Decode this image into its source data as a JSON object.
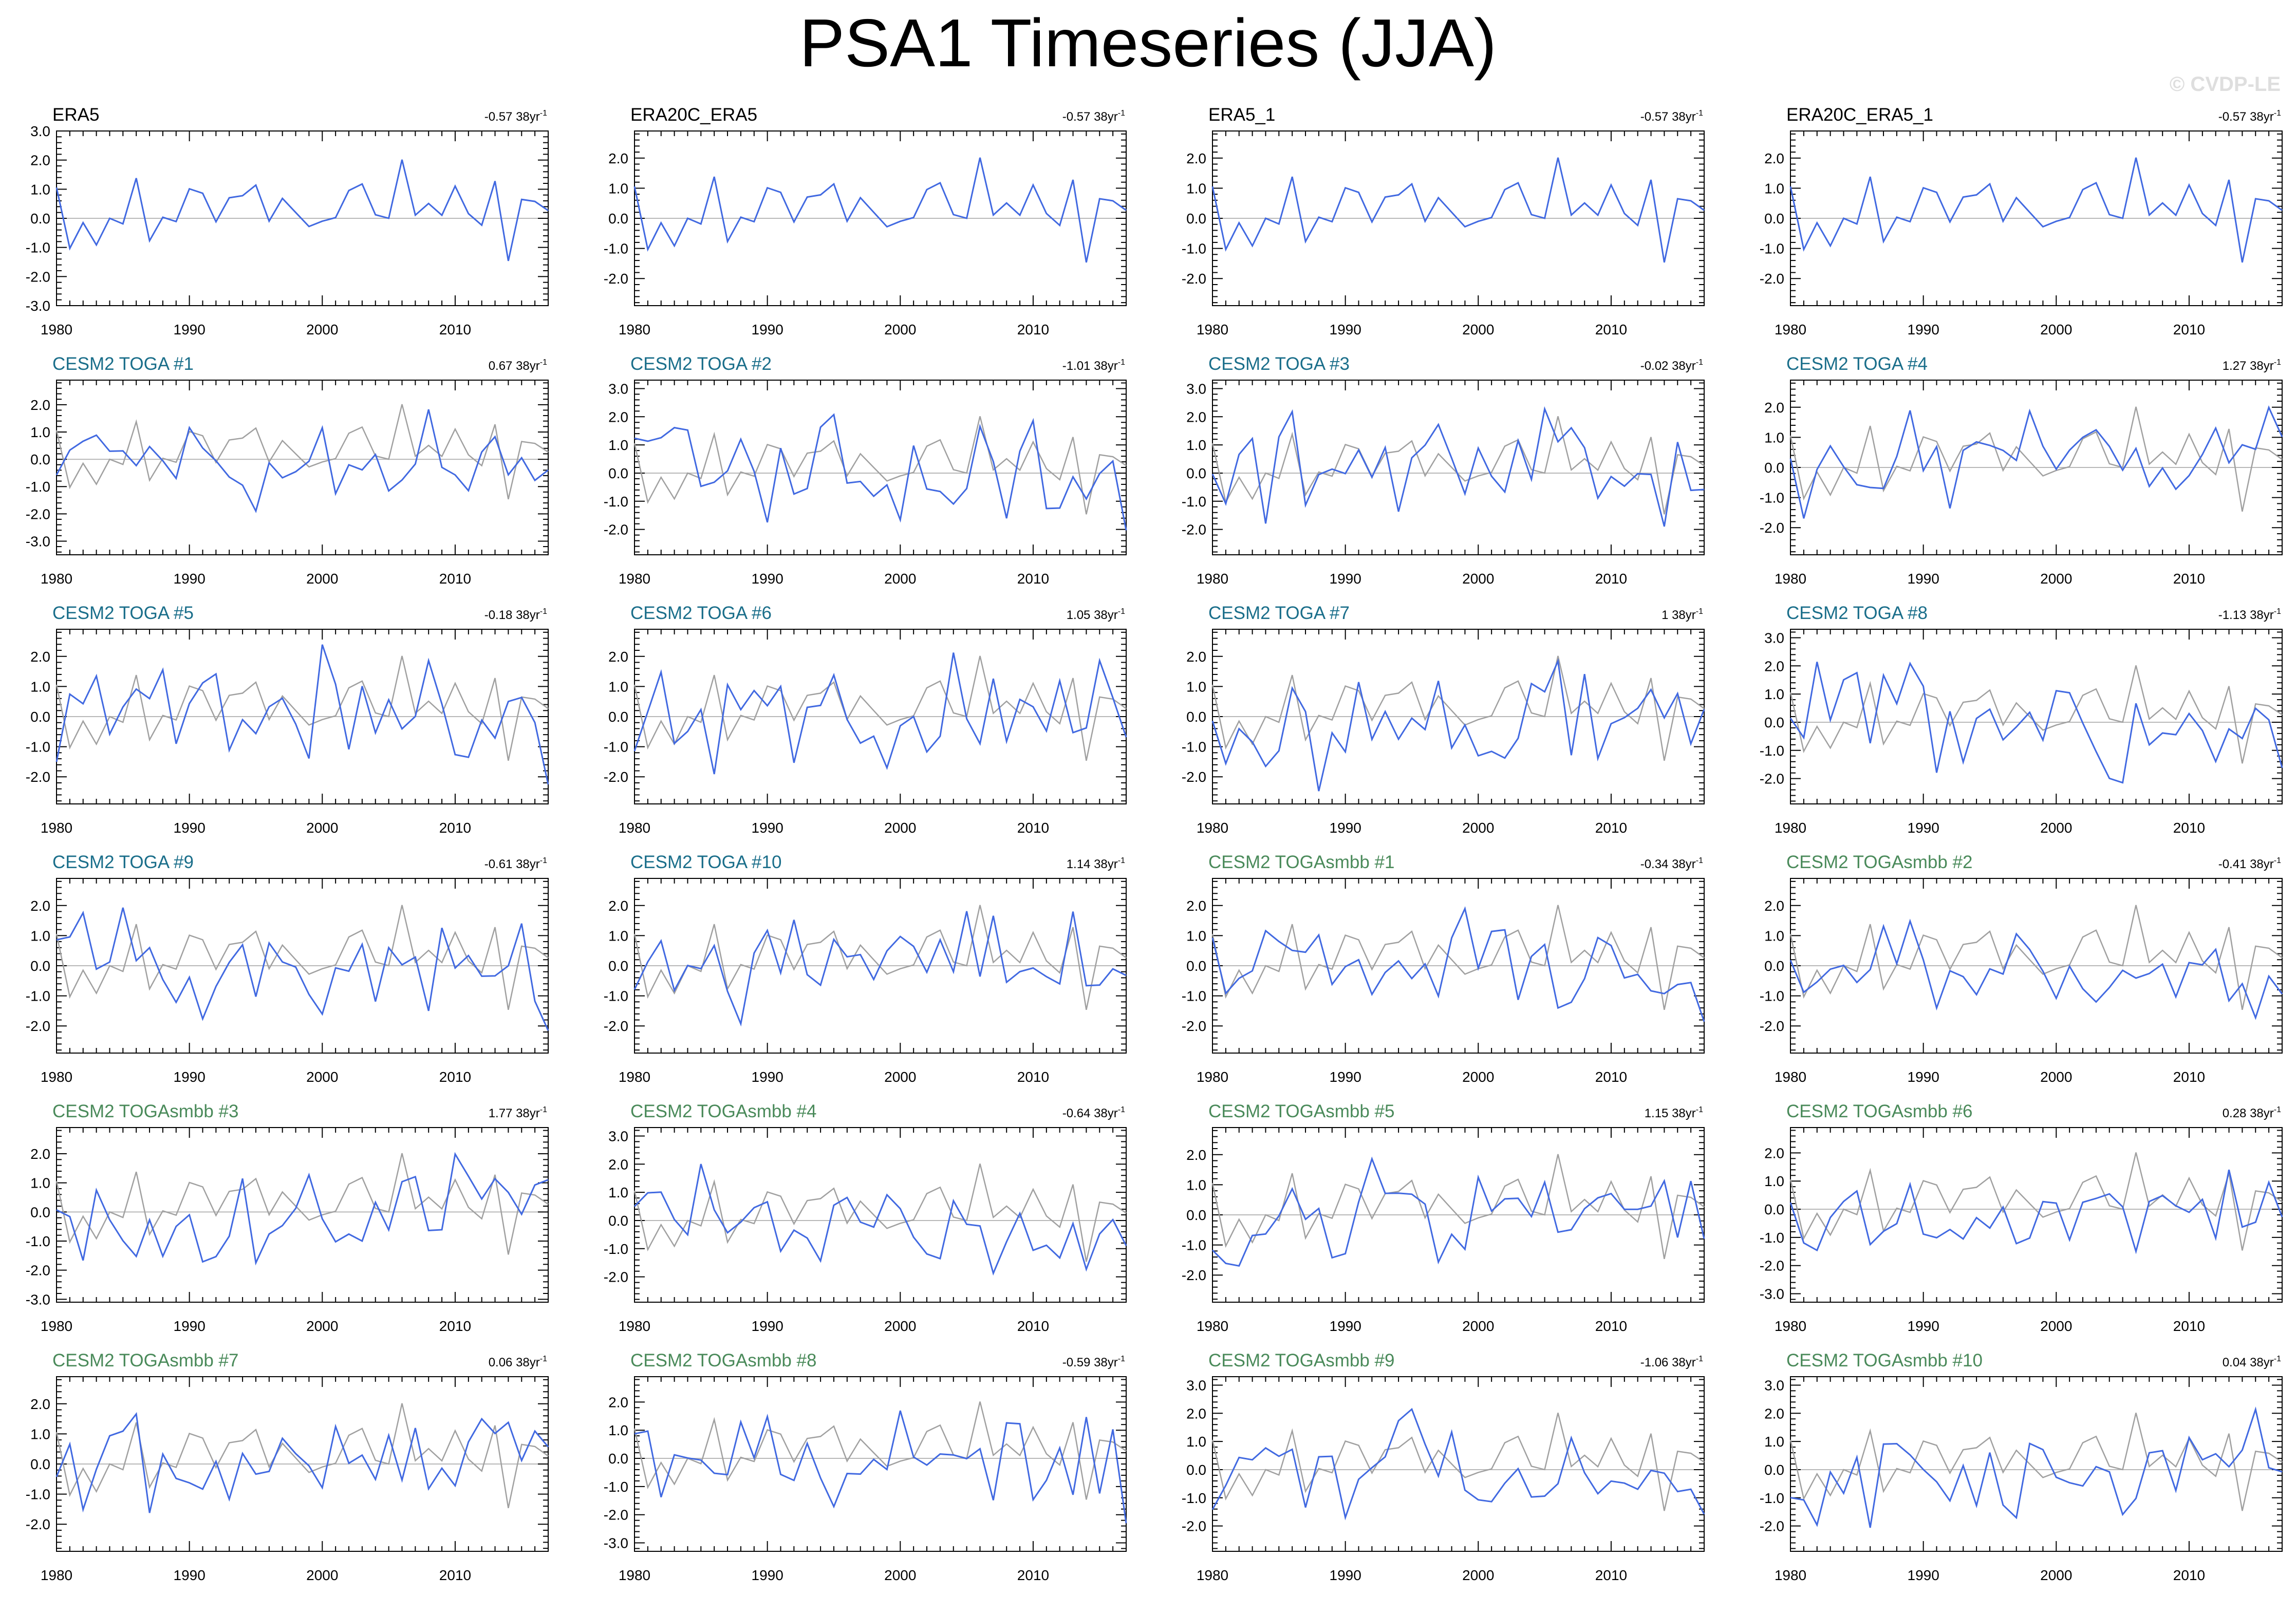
{
  "page_title": "PSA1 Timeseries (JJA)",
  "watermark": "© CVDP-LE",
  "colors": {
    "model": "#4169e1",
    "observed": "#a0a0a0",
    "obs_title": "#000000",
    "toga_title": "#1a6e8a",
    "smbb_title": "#4a8a5a",
    "frame": "#000000",
    "zero_line": "#b8b8b8"
  },
  "chart_data": [
    {
      "type": "line",
      "title": "ERA5",
      "trend_label": "-0.57 38yr",
      "trend_exp": "-1",
      "title_style": "obs",
      "xticks": [
        1980,
        1990,
        2000,
        2010
      ],
      "yticks": [
        -3.0,
        -2.0,
        -1.0,
        0.0,
        1.0,
        2.0,
        3.0
      ],
      "ylim": [
        -3,
        3
      ],
      "xlim": [
        1980,
        2017
      ]
    },
    {
      "type": "line",
      "title": "ERA20C_ERA5",
      "trend_label": "-0.57 38yr",
      "trend_exp": "-1",
      "title_style": "obs",
      "xticks": [
        1980,
        1990,
        2000,
        2010
      ],
      "yticks": [
        -2.0,
        -1.0,
        0.0,
        1.0,
        2.0
      ],
      "ylim": [
        -2.9,
        2.9
      ],
      "xlim": [
        1980,
        2017
      ]
    },
    {
      "type": "line",
      "title": "ERA5_1",
      "trend_label": "-0.57 38yr",
      "trend_exp": "-1",
      "title_style": "obs",
      "xticks": [
        1980,
        1990,
        2000,
        2010
      ],
      "yticks": [
        -2.0,
        -1.0,
        0.0,
        1.0,
        2.0
      ],
      "ylim": [
        -2.9,
        2.9
      ],
      "xlim": [
        1980,
        2017
      ]
    },
    {
      "type": "line",
      "title": "ERA20C_ERA5_1",
      "trend_label": "-0.57 38yr",
      "trend_exp": "-1",
      "title_style": "obs",
      "xticks": [
        1980,
        1990,
        2000,
        2010
      ],
      "yticks": [
        -2.0,
        -1.0,
        0.0,
        1.0,
        2.0
      ],
      "ylim": [
        -2.9,
        2.9
      ],
      "xlim": [
        1980,
        2017
      ]
    },
    {
      "type": "line",
      "title": "CESM2 TOGA #1",
      "trend_label": "0.67 38yr",
      "trend_exp": "-1",
      "title_style": "toga",
      "xticks": [
        1980,
        1990,
        2000,
        2010
      ],
      "yticks": [
        -3.0,
        -2.0,
        -1.0,
        0.0,
        1.0,
        2.0
      ],
      "ylim": [
        -3.5,
        2.9
      ],
      "xlim": [
        1980,
        2017
      ]
    },
    {
      "type": "line",
      "title": "CESM2 TOGA #2",
      "trend_label": "-1.01 38yr",
      "trend_exp": "-1",
      "title_style": "toga",
      "xticks": [
        1980,
        1990,
        2000,
        2010
      ],
      "yticks": [
        -2.0,
        -1.0,
        0.0,
        1.0,
        2.0,
        3.0
      ],
      "ylim": [
        -2.9,
        3.3
      ],
      "xlim": [
        1980,
        2017
      ]
    },
    {
      "type": "line",
      "title": "CESM2 TOGA #3",
      "trend_label": "-0.02 38yr",
      "trend_exp": "-1",
      "title_style": "toga",
      "xticks": [
        1980,
        1990,
        2000,
        2010
      ],
      "yticks": [
        -2.0,
        -1.0,
        0.0,
        1.0,
        2.0,
        3.0
      ],
      "ylim": [
        -2.9,
        3.3
      ],
      "xlim": [
        1980,
        2017
      ]
    },
    {
      "type": "line",
      "title": "CESM2 TOGA #4",
      "trend_label": "1.27 38yr",
      "trend_exp": "-1",
      "title_style": "toga",
      "xticks": [
        1980,
        1990,
        2000,
        2010
      ],
      "yticks": [
        -2.0,
        -1.0,
        0.0,
        1.0,
        2.0
      ],
      "ylim": [
        -2.9,
        2.9
      ],
      "xlim": [
        1980,
        2017
      ]
    },
    {
      "type": "line",
      "title": "CESM2 TOGA #5",
      "trend_label": "-0.18 38yr",
      "trend_exp": "-1",
      "title_style": "toga",
      "xticks": [
        1980,
        1990,
        2000,
        2010
      ],
      "yticks": [
        -2.0,
        -1.0,
        0.0,
        1.0,
        2.0
      ],
      "ylim": [
        -2.9,
        2.9
      ],
      "xlim": [
        1980,
        2017
      ]
    },
    {
      "type": "line",
      "title": "CESM2 TOGA #6",
      "trend_label": "1.05 38yr",
      "trend_exp": "-1",
      "title_style": "toga",
      "xticks": [
        1980,
        1990,
        2000,
        2010
      ],
      "yticks": [
        -2.0,
        -1.0,
        0.0,
        1.0,
        2.0
      ],
      "ylim": [
        -2.9,
        2.9
      ],
      "xlim": [
        1980,
        2017
      ]
    },
    {
      "type": "line",
      "title": "CESM2 TOGA #7",
      "trend_label": "1 38yr",
      "trend_exp": "-1",
      "title_style": "toga",
      "xticks": [
        1980,
        1990,
        2000,
        2010
      ],
      "yticks": [
        -2.0,
        -1.0,
        0.0,
        1.0,
        2.0
      ],
      "ylim": [
        -2.9,
        2.9
      ],
      "xlim": [
        1980,
        2017
      ]
    },
    {
      "type": "line",
      "title": "CESM2 TOGA #8",
      "trend_label": "-1.13 38yr",
      "trend_exp": "-1",
      "title_style": "toga",
      "xticks": [
        1980,
        1990,
        2000,
        2010
      ],
      "yticks": [
        -2.0,
        -1.0,
        0.0,
        1.0,
        2.0,
        3.0
      ],
      "ylim": [
        -2.9,
        3.3
      ],
      "xlim": [
        1980,
        2017
      ]
    },
    {
      "type": "line",
      "title": "CESM2 TOGA #9",
      "trend_label": "-0.61 38yr",
      "trend_exp": "-1",
      "title_style": "toga",
      "xticks": [
        1980,
        1990,
        2000,
        2010
      ],
      "yticks": [
        -2.0,
        -1.0,
        0.0,
        1.0,
        2.0
      ],
      "ylim": [
        -2.9,
        2.9
      ],
      "xlim": [
        1980,
        2017
      ]
    },
    {
      "type": "line",
      "title": "CESM2 TOGA #10",
      "trend_label": "1.14 38yr",
      "trend_exp": "-1",
      "title_style": "toga",
      "xticks": [
        1980,
        1990,
        2000,
        2010
      ],
      "yticks": [
        -2.0,
        -1.0,
        0.0,
        1.0,
        2.0
      ],
      "ylim": [
        -2.9,
        2.9
      ],
      "xlim": [
        1980,
        2017
      ]
    },
    {
      "type": "line",
      "title": "CESM2 TOGAsmbb #1",
      "trend_label": "-0.34 38yr",
      "trend_exp": "-1",
      "title_style": "smbb",
      "xticks": [
        1980,
        1990,
        2000,
        2010
      ],
      "yticks": [
        -2.0,
        -1.0,
        0.0,
        1.0,
        2.0
      ],
      "ylim": [
        -2.9,
        2.9
      ],
      "xlim": [
        1980,
        2017
      ]
    },
    {
      "type": "line",
      "title": "CESM2 TOGAsmbb #2",
      "trend_label": "-0.41 38yr",
      "trend_exp": "-1",
      "title_style": "smbb",
      "xticks": [
        1980,
        1990,
        2000,
        2010
      ],
      "yticks": [
        -2.0,
        -1.0,
        0.0,
        1.0,
        2.0
      ],
      "ylim": [
        -2.9,
        2.9
      ],
      "xlim": [
        1980,
        2017
      ]
    },
    {
      "type": "line",
      "title": "CESM2 TOGAsmbb #3",
      "trend_label": "1.77 38yr",
      "trend_exp": "-1",
      "title_style": "smbb",
      "xticks": [
        1980,
        1990,
        2000,
        2010
      ],
      "yticks": [
        -3.0,
        -2.0,
        -1.0,
        0.0,
        1.0,
        2.0
      ],
      "ylim": [
        -3.1,
        2.9
      ],
      "xlim": [
        1980,
        2017
      ]
    },
    {
      "type": "line",
      "title": "CESM2 TOGAsmbb #4",
      "trend_label": "-0.64 38yr",
      "trend_exp": "-1",
      "title_style": "smbb",
      "xticks": [
        1980,
        1990,
        2000,
        2010
      ],
      "yticks": [
        -2.0,
        -1.0,
        0.0,
        1.0,
        2.0,
        3.0
      ],
      "ylim": [
        -2.9,
        3.3
      ],
      "xlim": [
        1980,
        2017
      ]
    },
    {
      "type": "line",
      "title": "CESM2 TOGAsmbb #5",
      "trend_label": "1.15 38yr",
      "trend_exp": "-1",
      "title_style": "smbb",
      "xticks": [
        1980,
        1990,
        2000,
        2010
      ],
      "yticks": [
        -2.0,
        -1.0,
        0.0,
        1.0,
        2.0
      ],
      "ylim": [
        -2.9,
        2.9
      ],
      "xlim": [
        1980,
        2017
      ]
    },
    {
      "type": "line",
      "title": "CESM2 TOGAsmbb #6",
      "trend_label": "0.28 38yr",
      "trend_exp": "-1",
      "title_style": "smbb",
      "xticks": [
        1980,
        1990,
        2000,
        2010
      ],
      "yticks": [
        -3.0,
        -2.0,
        -1.0,
        0.0,
        1.0,
        2.0
      ],
      "ylim": [
        -3.3,
        2.9
      ],
      "xlim": [
        1980,
        2017
      ]
    },
    {
      "type": "line",
      "title": "CESM2 TOGAsmbb #7",
      "trend_label": "0.06 38yr",
      "trend_exp": "-1",
      "title_style": "smbb",
      "xticks": [
        1980,
        1990,
        2000,
        2010
      ],
      "yticks": [
        -2.0,
        -1.0,
        0.0,
        1.0,
        2.0
      ],
      "ylim": [
        -2.9,
        2.9
      ],
      "xlim": [
        1980,
        2017
      ]
    },
    {
      "type": "line",
      "title": "CESM2 TOGAsmbb #8",
      "trend_label": "-0.59 38yr",
      "trend_exp": "-1",
      "title_style": "smbb",
      "xticks": [
        1980,
        1990,
        2000,
        2010
      ],
      "yticks": [
        -3.0,
        -2.0,
        -1.0,
        0.0,
        1.0,
        2.0
      ],
      "ylim": [
        -3.3,
        2.9
      ],
      "xlim": [
        1980,
        2017
      ]
    },
    {
      "type": "line",
      "title": "CESM2 TOGAsmbb #9",
      "trend_label": "-1.06 38yr",
      "trend_exp": "-1",
      "title_style": "smbb",
      "xticks": [
        1980,
        1990,
        2000,
        2010
      ],
      "yticks": [
        -2.0,
        -1.0,
        0.0,
        1.0,
        2.0,
        3.0
      ],
      "ylim": [
        -2.9,
        3.3
      ],
      "xlim": [
        1980,
        2017
      ]
    },
    {
      "type": "line",
      "title": "CESM2 TOGAsmbb #10",
      "trend_label": "0.04 38yr",
      "trend_exp": "-1",
      "title_style": "smbb",
      "xticks": [
        1980,
        1990,
        2000,
        2010
      ],
      "yticks": [
        -2.0,
        -1.0,
        0.0,
        1.0,
        2.0,
        3.0
      ],
      "ylim": [
        -2.9,
        3.3
      ],
      "xlim": [
        1980,
        2017
      ]
    }
  ]
}
